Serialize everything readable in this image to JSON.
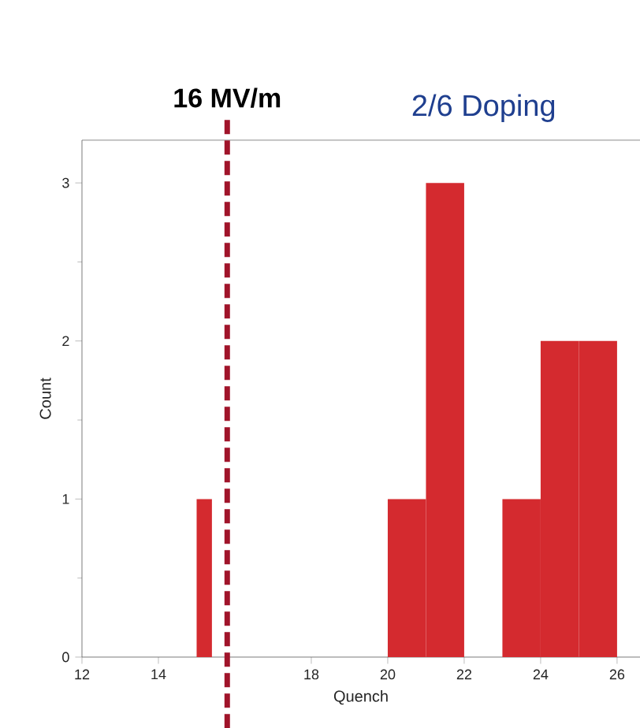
{
  "chart_data": {
    "type": "histogram",
    "title": "2/6 Doping",
    "xlabel": "Quench",
    "ylabel": "Count",
    "bins": [
      15,
      15.4,
      20,
      21,
      22,
      23,
      24,
      25,
      26
    ],
    "values": [
      1,
      0,
      1,
      3,
      0,
      1,
      2,
      2
    ],
    "color": "#d42a2f",
    "xlim": [
      12,
      26.6
    ],
    "ylim": [
      0,
      3.27
    ],
    "xticks": [
      12,
      14,
      18,
      20,
      22,
      24,
      26
    ],
    "yticks": [
      0,
      1,
      2,
      3
    ],
    "ref_lines": [
      {
        "axis": "x",
        "value": 15.8,
        "label": "16 MV/m",
        "color": "#a0142a",
        "line_style": "dashed"
      }
    ],
    "grid": false
  }
}
